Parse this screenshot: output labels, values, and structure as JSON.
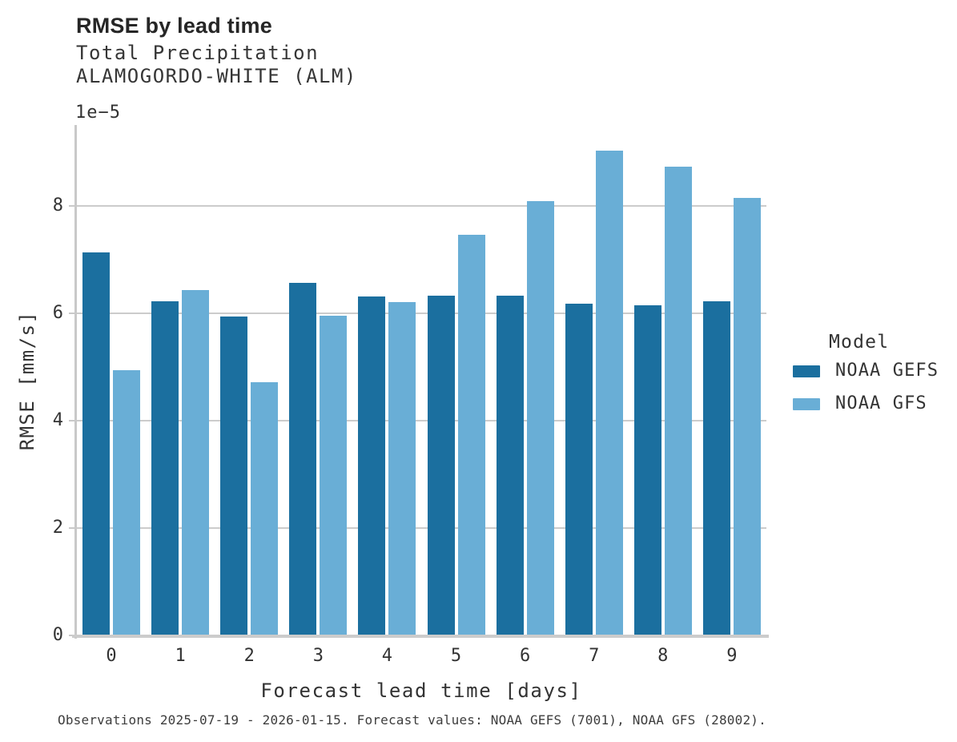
{
  "header": {
    "title": "RMSE by lead time",
    "subtitle_line1": "Total Precipitation",
    "subtitle_line2": "ALAMOGORDO-WHITE (ALM)"
  },
  "legend": {
    "title": "Model",
    "items": [
      {
        "label": "NOAA GEFS",
        "color": "#1b6f9f"
      },
      {
        "label": "NOAA GFS",
        "color": "#69aed6"
      }
    ]
  },
  "footer": {
    "caption": "Observations 2025-07-19 - 2026-01-15. Forecast values: NOAA GEFS (7001), NOAA GFS (28002)."
  },
  "chart_data": {
    "type": "bar",
    "title": "RMSE by lead time",
    "categories": [
      "0",
      "1",
      "2",
      "3",
      "4",
      "5",
      "6",
      "7",
      "8",
      "9"
    ],
    "series": [
      {
        "name": "NOAA GEFS",
        "color": "#1b6f9f",
        "values": [
          7.13,
          6.22,
          5.94,
          6.56,
          6.31,
          6.33,
          6.33,
          6.17,
          6.14,
          6.22
        ]
      },
      {
        "name": "NOAA GFS",
        "color": "#69aed6",
        "values": [
          4.93,
          6.43,
          4.71,
          5.95,
          6.21,
          7.46,
          8.09,
          9.02,
          8.73,
          8.15
        ]
      }
    ],
    "value_scale": "1e-5",
    "y_offset_label": "1e−5",
    "xlabel": "Forecast lead time [days]",
    "ylabel": "RMSE [mm/s]",
    "ylim": [
      0,
      9.5
    ],
    "y_ticks": [
      0,
      2,
      4,
      6,
      8
    ],
    "y_gridlines": [
      2,
      4,
      6,
      8
    ],
    "grid": "horizontal",
    "legend_position": "right",
    "legend_title": "Model"
  }
}
